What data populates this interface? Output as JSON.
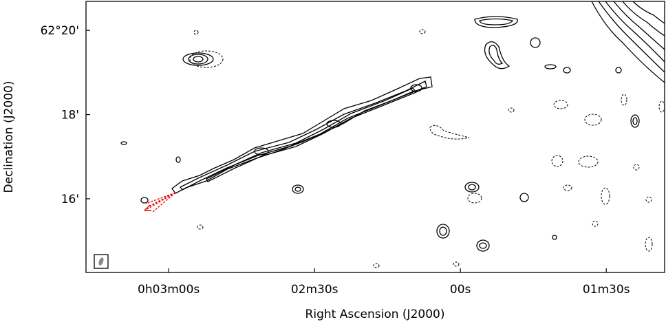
{
  "chart_data": {
    "type": "contour",
    "xlabel": "Right Ascension (J2000)",
    "ylabel": "Declination (J2000)",
    "xlim": [
      197,
      78
    ],
    "xticks": [
      {
        "value": 180,
        "label": "0h03m00s"
      },
      {
        "value": 150,
        "label": "02m30s"
      },
      {
        "value": 120,
        "label": "00s"
      },
      {
        "value": 90,
        "label": "01m30s"
      }
    ],
    "ylim": [
      14.25,
      20.69
    ],
    "yticks": [
      {
        "value": 20,
        "label": "62°20'"
      },
      {
        "value": 18,
        "label": "18'"
      },
      {
        "value": 16,
        "label": "16'"
      }
    ]
  }
}
